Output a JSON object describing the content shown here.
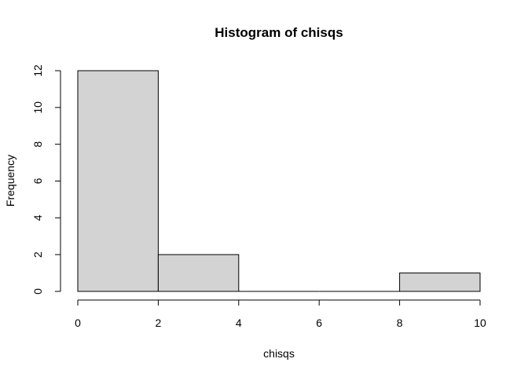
{
  "chart_data": {
    "type": "bar",
    "subtype": "histogram",
    "title": "Histogram of chisqs",
    "xlabel": "chisqs",
    "ylabel": "Frequency",
    "bins": [
      {
        "from": 0,
        "to": 2,
        "count": 12
      },
      {
        "from": 2,
        "to": 4,
        "count": 2
      },
      {
        "from": 4,
        "to": 6,
        "count": 0
      },
      {
        "from": 6,
        "to": 8,
        "count": 0
      },
      {
        "from": 8,
        "to": 10,
        "count": 1
      }
    ],
    "xlim": [
      0,
      10
    ],
    "ylim": [
      0,
      12
    ],
    "x_ticks": [
      "0",
      "2",
      "4",
      "6",
      "8",
      "10"
    ],
    "y_ticks": [
      "0",
      "2",
      "4",
      "6",
      "8",
      "10",
      "12"
    ],
    "bar_fill": "#d3d3d3",
    "bar_stroke": "#000000",
    "grid": false,
    "legend": "none"
  }
}
